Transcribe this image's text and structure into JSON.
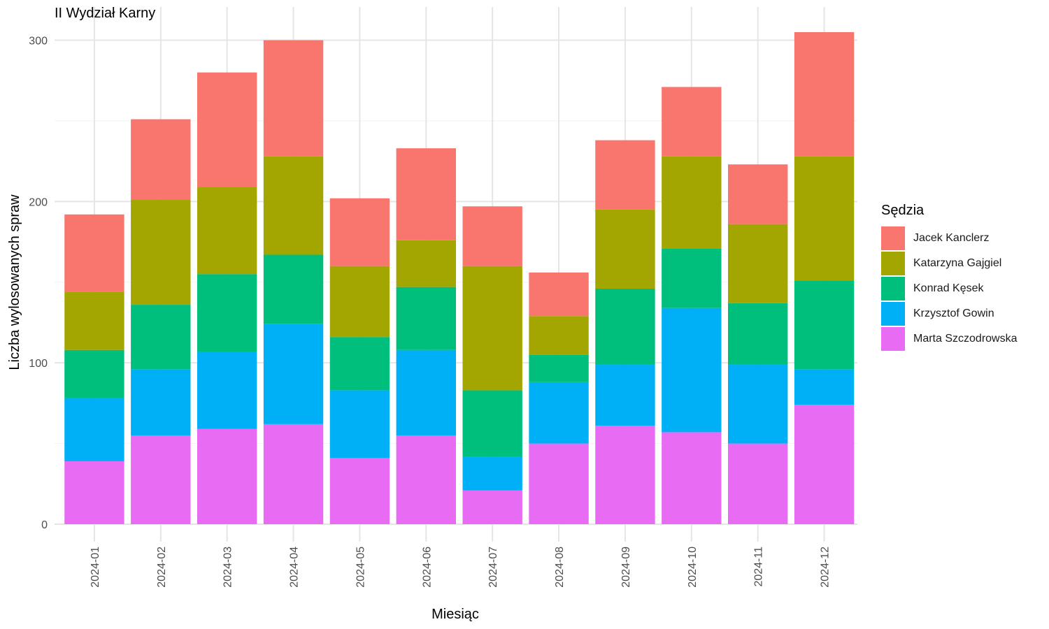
{
  "chart_data": {
    "type": "bar",
    "stacked": true,
    "title": "II Wydział Karny",
    "xlabel": "Miesiąc",
    "ylabel": "Liczba wylosowanych spraw",
    "ylim": [
      0,
      310
    ],
    "yticks": [
      0,
      100,
      200,
      300
    ],
    "grid": true,
    "legend_title": "Sędzia",
    "legend_position": "right",
    "categories": [
      "2024-01",
      "2024-02",
      "2024-03",
      "2024-04",
      "2024-05",
      "2024-06",
      "2024-07",
      "2024-08",
      "2024-09",
      "2024-10",
      "2024-11",
      "2024-12"
    ],
    "series": [
      {
        "name": "Marta Szczodrowska",
        "color": "#E76BF3",
        "values": [
          39,
          55,
          59,
          62,
          41,
          55,
          21,
          50,
          61,
          57,
          50,
          74
        ]
      },
      {
        "name": "Krzysztof Gowin",
        "color": "#00B0F6",
        "values": [
          39,
          41,
          48,
          62,
          42,
          53,
          21,
          38,
          38,
          77,
          49,
          22
        ]
      },
      {
        "name": "Konrad Kęsek",
        "color": "#00BF7D",
        "values": [
          30,
          40,
          48,
          43,
          33,
          39,
          41,
          17,
          47,
          37,
          38,
          55
        ]
      },
      {
        "name": "Katarzyna Gajgiel",
        "color": "#A3A500",
        "values": [
          36,
          65,
          54,
          61,
          44,
          29,
          77,
          24,
          49,
          57,
          49,
          77
        ]
      },
      {
        "name": "Jacek Kanclerz",
        "color": "#F8766D",
        "values": [
          48,
          50,
          71,
          72,
          42,
          57,
          37,
          27,
          43,
          43,
          37,
          77
        ]
      }
    ],
    "legend_order": [
      "Jacek Kanclerz",
      "Katarzyna Gajgiel",
      "Konrad Kęsek",
      "Krzysztof Gowin",
      "Marta Szczodrowska"
    ]
  }
}
